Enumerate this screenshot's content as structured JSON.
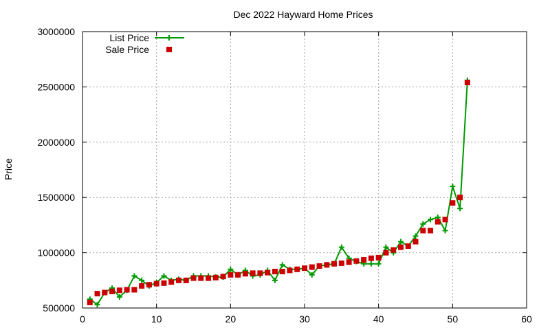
{
  "chart_data": {
    "type": "line",
    "title": "Dec 2022 Hayward Home Prices",
    "xlabel": "",
    "ylabel": "Price",
    "xlim": [
      0,
      60
    ],
    "ylim": [
      500000,
      3000000
    ],
    "x_ticks": [
      "0",
      "10",
      "20",
      "30",
      "40",
      "50",
      "60"
    ],
    "y_ticks": [
      "500000",
      "1000000",
      "1500000",
      "2000000",
      "2500000",
      "3000000"
    ],
    "grid": true,
    "legend_position": "top-left",
    "x": [
      1,
      2,
      3,
      4,
      5,
      6,
      7,
      8,
      9,
      10,
      11,
      12,
      13,
      14,
      15,
      16,
      17,
      18,
      19,
      20,
      21,
      22,
      23,
      24,
      25,
      26,
      27,
      28,
      29,
      30,
      31,
      32,
      33,
      34,
      35,
      36,
      37,
      38,
      39,
      40,
      41,
      42,
      43,
      44,
      45,
      46,
      47,
      48,
      49,
      50,
      51,
      52
    ],
    "series": [
      {
        "name": "List Price",
        "style": "line-plus",
        "color": "#009900",
        "values": [
          580000,
          530000,
          640000,
          680000,
          600000,
          660000,
          790000,
          750000,
          700000,
          730000,
          790000,
          750000,
          760000,
          750000,
          790000,
          790000,
          790000,
          780000,
          780000,
          850000,
          800000,
          840000,
          790000,
          800000,
          840000,
          750000,
          890000,
          850000,
          850000,
          860000,
          800000,
          880000,
          890000,
          900000,
          1050000,
          950000,
          920000,
          900000,
          900000,
          900000,
          1050000,
          1000000,
          1100000,
          1060000,
          1150000,
          1260000,
          1300000,
          1320000,
          1200000,
          1600000,
          1400000,
          2560000
        ]
      },
      {
        "name": "Sale Price",
        "style": "square-markers",
        "color": "#cc0000",
        "values": [
          550000,
          630000,
          640000,
          650000,
          660000,
          665000,
          665000,
          700000,
          710000,
          720000,
          725000,
          735000,
          750000,
          750000,
          770000,
          770000,
          770000,
          775000,
          785000,
          800000,
          800000,
          810000,
          815000,
          815000,
          820000,
          830000,
          830000,
          840000,
          850000,
          860000,
          870000,
          880000,
          890000,
          900000,
          905000,
          915000,
          925000,
          935000,
          950000,
          955000,
          1000000,
          1025000,
          1050000,
          1060000,
          1100000,
          1200000,
          1200000,
          1280000,
          1300000,
          1450000,
          1500000,
          2540000
        ]
      }
    ]
  }
}
